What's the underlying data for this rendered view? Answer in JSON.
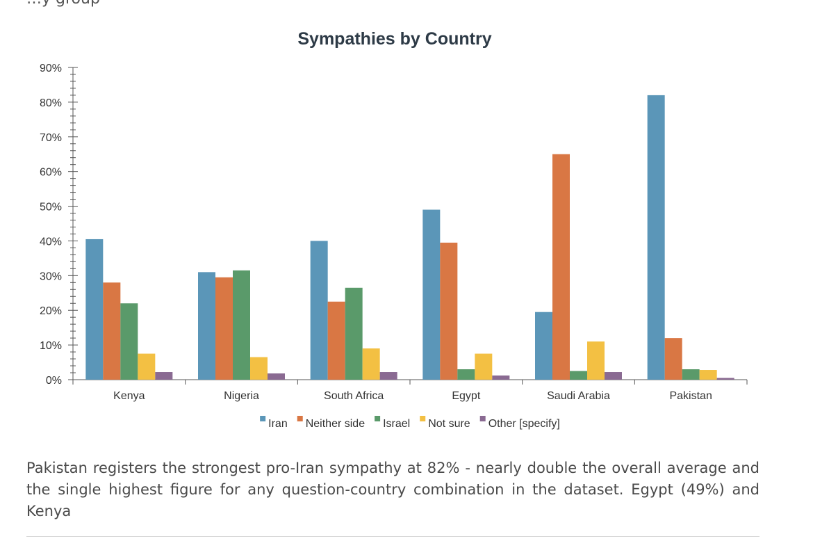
{
  "page": {
    "top_fragment": "…y group",
    "paragraph": "Pakistan registers the strongest pro-Iran sympathy at 82% - nearly double the overall average and the single highest figure for any question-country combination in the dataset. Egypt (49%) and Kenya"
  },
  "chart_data": {
    "type": "bar",
    "title": "Sympathies by Country",
    "xlabel": "",
    "ylabel": "",
    "ylim": [
      0,
      90
    ],
    "yticks": [
      "0%",
      "10%",
      "20%",
      "30%",
      "40%",
      "50%",
      "60%",
      "70%",
      "80%",
      "90%"
    ],
    "categories": [
      "Kenya",
      "Nigeria",
      "South Africa",
      "Egypt",
      "Saudi Arabia",
      "Pakistan"
    ],
    "legend_position": "bottom",
    "series": [
      {
        "name": "Iran",
        "color": "#5b96b8",
        "values": [
          40.5,
          31,
          40,
          49,
          19.5,
          82
        ]
      },
      {
        "name": "Neither side",
        "color": "#d97744",
        "values": [
          28,
          29.5,
          22.5,
          39.5,
          65,
          12
        ]
      },
      {
        "name": "Israel",
        "color": "#5a9a6a",
        "values": [
          22,
          31.5,
          26.5,
          3,
          2.5,
          3
        ]
      },
      {
        "name": "Not sure",
        "color": "#f3c043",
        "values": [
          7.5,
          6.5,
          9,
          7.5,
          11,
          2.8
        ]
      },
      {
        "name": "Other [specify]",
        "color": "#8a6a92",
        "values": [
          2.2,
          1.8,
          2.2,
          1.2,
          2.2,
          0.5
        ]
      }
    ]
  }
}
